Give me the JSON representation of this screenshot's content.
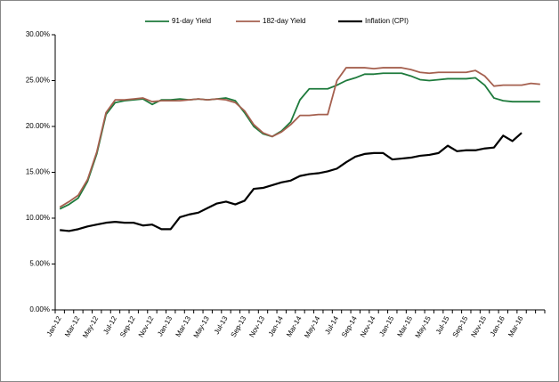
{
  "chart_data": {
    "type": "line",
    "categories": [
      "Jan-12",
      null,
      "Mar-12",
      null,
      "May-12",
      null,
      "Jul-12",
      null,
      "Sep-12",
      null,
      "Nov-12",
      null,
      "Jan-13",
      null,
      "Mar-13",
      null,
      "May-13",
      null,
      "Jul-13",
      null,
      "Sep-13",
      null,
      "Nov-13",
      null,
      "Jan-14",
      null,
      "Mar-14",
      null,
      "May-14",
      null,
      "Jul-14",
      null,
      "Sep-14",
      null,
      "Nov-14",
      null,
      "Jan-15",
      null,
      "Mar-15",
      null,
      "May-15",
      null,
      "Jul-15",
      null,
      "Sep-15",
      null,
      "Nov-15",
      null,
      "Jan-16",
      null,
      "Mar-16",
      null,
      null
    ],
    "series": [
      {
        "name": "91-day Yield",
        "color": "#1e7a3c",
        "values": [
          11.0,
          11.5,
          12.2,
          14.0,
          17.0,
          21.3,
          22.6,
          22.8,
          22.9,
          23.0,
          22.4,
          22.9,
          22.9,
          23.0,
          22.9,
          23.0,
          22.9,
          23.0,
          23.1,
          22.8,
          21.5,
          20.0,
          19.2,
          18.9,
          19.5,
          20.5,
          22.9,
          24.1,
          24.1,
          24.1,
          24.5,
          25.0,
          25.3,
          25.7,
          25.7,
          25.8,
          25.8,
          25.8,
          25.5,
          25.1,
          25.0,
          25.1,
          25.2,
          25.2,
          25.2,
          25.3,
          24.5,
          23.1,
          22.8,
          22.7,
          22.7,
          22.7,
          22.7
        ]
      },
      {
        "name": "182-day Yield",
        "color": "#a5604f",
        "values": [
          11.2,
          11.8,
          12.5,
          14.2,
          17.2,
          21.5,
          22.9,
          22.9,
          23.0,
          23.1,
          22.7,
          22.8,
          22.8,
          22.8,
          22.9,
          23.0,
          22.9,
          23.0,
          22.9,
          22.6,
          21.7,
          20.2,
          19.3,
          18.9,
          19.4,
          20.2,
          21.2,
          21.2,
          21.3,
          21.3,
          25.0,
          26.4,
          26.4,
          26.4,
          26.3,
          26.4,
          26.4,
          26.4,
          26.2,
          25.9,
          25.8,
          25.9,
          25.9,
          25.9,
          25.9,
          26.1,
          25.5,
          24.4,
          24.5,
          24.5,
          24.5,
          24.7,
          24.6
        ]
      },
      {
        "name": "Inflation (CPI)",
        "color": "#000000",
        "values": [
          8.7,
          8.6,
          8.8,
          9.1,
          9.3,
          9.5,
          9.6,
          9.5,
          9.5,
          9.2,
          9.3,
          8.8,
          8.8,
          10.1,
          10.4,
          10.6,
          11.1,
          11.6,
          11.8,
          11.5,
          11.9,
          13.2,
          13.3,
          13.6,
          13.9,
          14.1,
          14.6,
          14.8,
          14.9,
          15.1,
          15.4,
          16.1,
          16.7,
          17.0,
          17.1,
          17.1,
          16.4,
          16.5,
          16.6,
          16.8,
          16.9,
          17.1,
          17.9,
          17.3,
          17.4,
          17.4,
          17.6,
          17.7,
          19.0,
          18.4,
          19.3,
          null,
          null
        ]
      }
    ],
    "ylim": [
      0,
      30
    ],
    "yticks": [
      {
        "value": 0,
        "label": "0.00%"
      },
      {
        "value": 5,
        "label": "5.00%"
      },
      {
        "value": 10,
        "label": "10.00%"
      },
      {
        "value": 15,
        "label": "15.00%"
      },
      {
        "value": 20,
        "label": "20.00%"
      },
      {
        "value": 25,
        "label": "25.00%"
      },
      {
        "value": 30,
        "label": "30.00%"
      }
    ],
    "grid": false,
    "legend": "top"
  }
}
